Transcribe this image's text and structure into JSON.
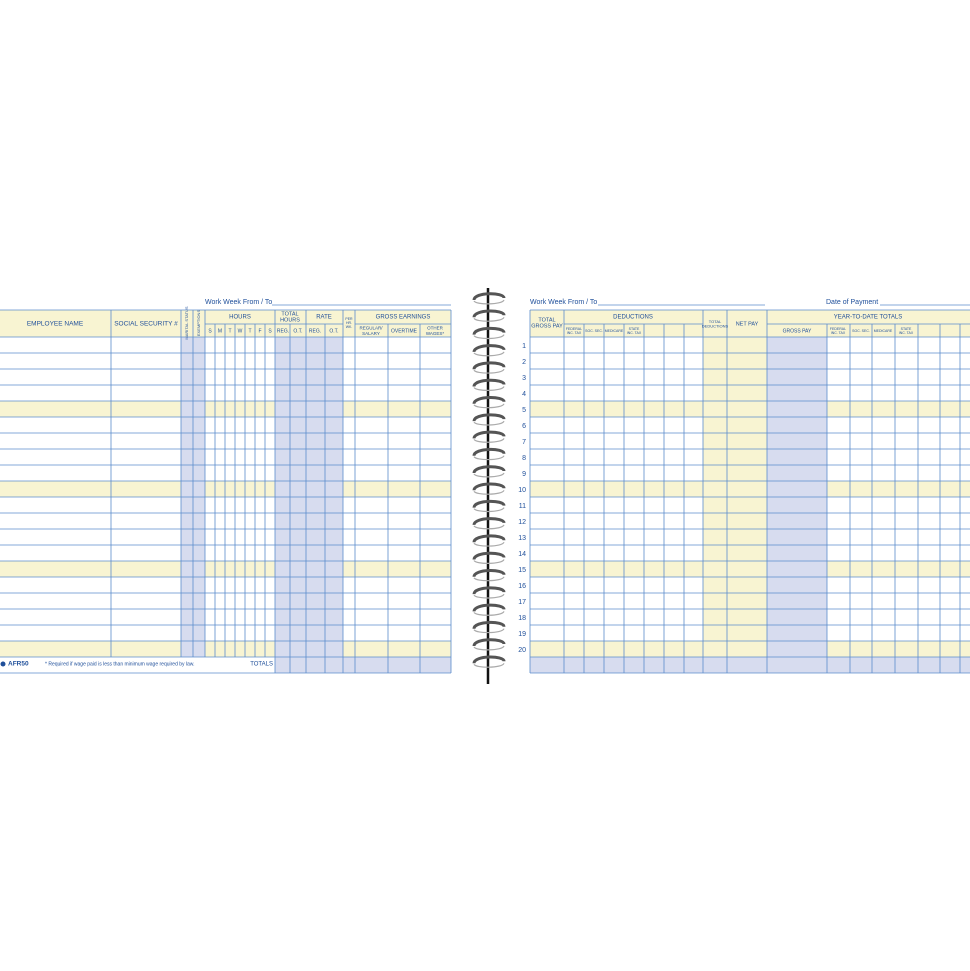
{
  "left_page": {
    "week_label": "Work Week From / To",
    "headers": {
      "employee_name": "EMPLOYEE NAME",
      "social_security": "SOCIAL SECURITY #",
      "marital_status": "MARITAL STATUS",
      "exemptions": "EXEMPTIONS",
      "hours": "HOURS",
      "days": [
        "S",
        "M",
        "T",
        "W",
        "T",
        "F",
        "S"
      ],
      "total_hours": [
        "TOTAL",
        "HOURS"
      ],
      "total_reg": "REG.",
      "total_ot": "O.T.",
      "rate": "RATE",
      "rate_reg": "REG.",
      "rate_ot": "O.T.",
      "per": [
        "PER",
        "HR.",
        "WK."
      ],
      "gross_earnings": "GROSS EARNINGS",
      "regular_salary": [
        "REGULAR/",
        "SALARY"
      ],
      "overtime": "OVERTIME",
      "other_wages": [
        "OTHER",
        "WAGES*"
      ]
    },
    "footer": {
      "form_code": "AFR50",
      "note": "* Required if wage paid is less than minimum wage required by law.",
      "totals": "TOTALS"
    }
  },
  "right_page": {
    "week_label": "Work Week From / To",
    "date_of_payment": "Date of Payment",
    "headers": {
      "total_gross_pay": [
        "TOTAL",
        "GROSS PAY"
      ],
      "deductions": "DEDUCTIONS",
      "federal_inc_tax": [
        "FEDERAL",
        "INC. TAX"
      ],
      "soc_sec": "SOC. SEC.",
      "medicare": "MEDICARE",
      "state_inc_tax": [
        "STATE",
        "INC. TAX"
      ],
      "total_deductions": [
        "TOTAL",
        "DEDUCTIONS"
      ],
      "net_pay": "NET PAY",
      "ytd_totals": "YEAR-TO-DATE TOTALS",
      "ytd_gross_pay": "GROSS PAY",
      "ytd_federal_inc_tax": [
        "FEDERAL",
        "INC. TAX"
      ],
      "ytd_soc_sec": "SOC. SEC.",
      "ytd_medicare": "MEDICARE",
      "ytd_state_inc_tax": [
        "STATE",
        "INC. TAX"
      ]
    },
    "row_numbers": [
      1,
      2,
      3,
      4,
      5,
      6,
      7,
      8,
      9,
      10,
      11,
      12,
      13,
      14,
      15,
      16,
      17,
      18,
      19,
      20
    ]
  }
}
